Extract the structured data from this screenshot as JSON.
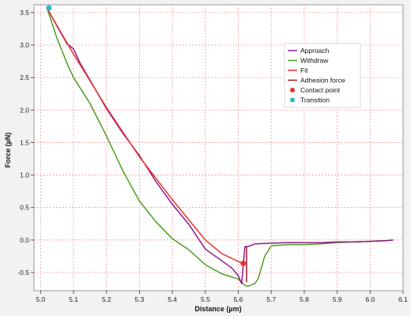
{
  "chart_data": {
    "type": "line",
    "xlabel": "Distance (µm)",
    "ylabel": "Force (µN)",
    "xlim": [
      4.98,
      6.1
    ],
    "ylim": [
      -0.78,
      3.62
    ],
    "xticks": [
      5.0,
      5.1,
      5.2,
      5.3,
      5.4,
      5.5,
      5.6,
      5.7,
      5.8,
      5.9,
      6.0,
      6.1
    ],
    "yticks": [
      -0.5,
      0.0,
      0.5,
      1.0,
      1.5,
      2.0,
      2.5,
      3.0,
      3.5
    ],
    "xtick_labels": [
      "5.0",
      "5.1",
      "5.2",
      "5.3",
      "5.4",
      "5.5",
      "5.6",
      "5.7",
      "5.8",
      "5.9",
      "6.0",
      "6.1"
    ],
    "ytick_labels": [
      "-0.5",
      "0.0",
      "0.5",
      "1.0",
      "1.5",
      "2.0",
      "2.5",
      "3.0",
      "3.5"
    ],
    "grid": true,
    "legend_position": "top-right",
    "series": [
      {
        "name": "Approach",
        "kind": "line",
        "color": "#8b1a8b",
        "points": [
          [
            5.02,
            3.56
          ],
          [
            5.04,
            3.38
          ],
          [
            5.06,
            3.2
          ],
          [
            5.08,
            3.02
          ],
          [
            5.1,
            2.94
          ],
          [
            5.12,
            2.72
          ],
          [
            5.15,
            2.46
          ],
          [
            5.2,
            2.02
          ],
          [
            5.25,
            1.64
          ],
          [
            5.3,
            1.3
          ],
          [
            5.35,
            0.9
          ],
          [
            5.4,
            0.55
          ],
          [
            5.45,
            0.24
          ],
          [
            5.5,
            -0.14
          ],
          [
            5.55,
            -0.32
          ],
          [
            5.58,
            -0.43
          ],
          [
            5.6,
            -0.55
          ],
          [
            5.61,
            -0.67
          ],
          [
            5.62,
            -0.1
          ],
          [
            5.63,
            -0.1
          ],
          [
            5.65,
            -0.06
          ],
          [
            5.7,
            -0.05
          ],
          [
            5.75,
            -0.04
          ],
          [
            5.8,
            -0.04
          ],
          [
            5.85,
            -0.04
          ],
          [
            5.9,
            -0.03
          ],
          [
            5.95,
            -0.03
          ],
          [
            6.0,
            -0.02
          ],
          [
            6.05,
            -0.01
          ],
          [
            6.07,
            0.0
          ]
        ]
      },
      {
        "name": "Withdraw",
        "kind": "line",
        "color": "#4c9e1e",
        "points": [
          [
            5.02,
            3.56
          ],
          [
            5.05,
            3.1
          ],
          [
            5.08,
            2.72
          ],
          [
            5.1,
            2.5
          ],
          [
            5.12,
            2.34
          ],
          [
            5.15,
            2.1
          ],
          [
            5.2,
            1.6
          ],
          [
            5.25,
            1.06
          ],
          [
            5.3,
            0.6
          ],
          [
            5.35,
            0.28
          ],
          [
            5.4,
            0.02
          ],
          [
            5.45,
            -0.15
          ],
          [
            5.5,
            -0.38
          ],
          [
            5.55,
            -0.52
          ],
          [
            5.6,
            -0.6
          ],
          [
            5.62,
            -0.7
          ],
          [
            5.63,
            -0.71
          ],
          [
            5.65,
            -0.67
          ],
          [
            5.66,
            -0.6
          ],
          [
            5.68,
            -0.25
          ],
          [
            5.7,
            -0.09
          ],
          [
            5.75,
            -0.07
          ],
          [
            5.8,
            -0.07
          ],
          [
            5.85,
            -0.06
          ],
          [
            5.9,
            -0.04
          ],
          [
            5.95,
            -0.03
          ],
          [
            6.0,
            -0.02
          ],
          [
            6.05,
            -0.01
          ],
          [
            6.07,
            0.0
          ]
        ]
      },
      {
        "name": "Fit",
        "kind": "line",
        "color": "#e8332c",
        "points": [
          [
            5.02,
            3.56
          ],
          [
            5.1,
            2.86
          ],
          [
            5.2,
            2.04
          ],
          [
            5.3,
            1.28
          ],
          [
            5.4,
            0.62
          ],
          [
            5.5,
            0.0
          ],
          [
            5.55,
            -0.21
          ],
          [
            5.6,
            -0.33
          ],
          [
            5.615,
            -0.36
          ]
        ]
      },
      {
        "name": "Adhesion force",
        "kind": "vline",
        "color": "#a3182a",
        "x": 5.625,
        "y": [
          -0.65,
          -0.1
        ]
      },
      {
        "name": "Contact point",
        "kind": "marker",
        "color": "#e8332c",
        "x": 5.615,
        "y": -0.36
      },
      {
        "name": "Transition",
        "kind": "marker",
        "color": "#2cb5c2",
        "x": 5.025,
        "y": 3.57
      }
    ]
  }
}
